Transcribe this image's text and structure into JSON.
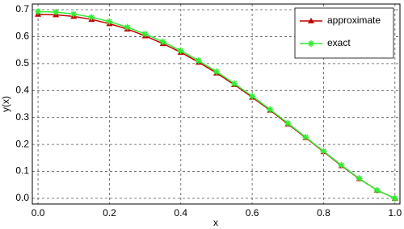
{
  "chart_data": {
    "type": "line",
    "x_label": "x",
    "y_label": "y(x)",
    "x": [
      0,
      0.05,
      0.1,
      0.15,
      0.2,
      0.25,
      0.3,
      0.35,
      0.4,
      0.45,
      0.5,
      0.55,
      0.6,
      0.65,
      0.7,
      0.75,
      0.8,
      0.85,
      0.9,
      0.95,
      1
    ],
    "series": [
      {
        "name": "approximate",
        "color": "#c00000",
        "marker": "triangle",
        "values": [
          0.683,
          0.681,
          0.675,
          0.664,
          0.648,
          0.628,
          0.603,
          0.574,
          0.542,
          0.505,
          0.465,
          0.422,
          0.375,
          0.327,
          0.276,
          0.225,
          0.173,
          0.121,
          0.073,
          0.03,
          0
        ]
      },
      {
        "name": "exact",
        "color": "#33ee33",
        "marker": "star",
        "values": [
          0.693,
          0.691,
          0.684,
          0.672,
          0.656,
          0.635,
          0.61,
          0.581,
          0.548,
          0.511,
          0.47,
          0.426,
          0.379,
          0.33,
          0.279,
          0.227,
          0.175,
          0.123,
          0.074,
          0.03,
          0
        ]
      }
    ],
    "xlim": [
      -0.016,
      1.014
    ],
    "ylim": [
      -0.021,
      0.721
    ],
    "xticks": [
      {
        "value": 0,
        "label": "0.0"
      },
      0.2,
      0.4,
      0.6,
      0.8,
      {
        "value": 1,
        "label": "1.0"
      }
    ],
    "yticks": [
      {
        "value": 0,
        "label": "0.0"
      },
      0.1,
      0.2,
      0.3,
      0.4,
      0.5,
      0.6,
      0.7
    ],
    "grid": true,
    "legend": "upper right"
  }
}
